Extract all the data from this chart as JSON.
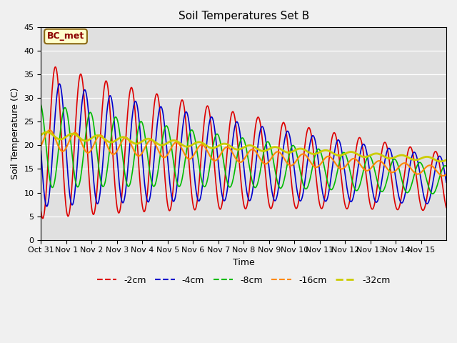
{
  "title": "Soil Temperatures Set B",
  "xlabel": "Time",
  "ylabel": "Soil Temperature (C)",
  "ylim": [
    0,
    45
  ],
  "annotation": "BC_met",
  "series_colors": {
    "-2cm": "#dd0000",
    "-4cm": "#0000cc",
    "-8cm": "#00bb00",
    "-16cm": "#ff8800",
    "-32cm": "#cccc00"
  },
  "xtick_positions": [
    0,
    1,
    2,
    3,
    4,
    5,
    6,
    7,
    8,
    9,
    10,
    11,
    12,
    13,
    14,
    15
  ],
  "xtick_labels": [
    "Oct 31",
    "Nov 1",
    "Nov 2",
    "Nov 3",
    "Nov 4",
    "Nov 5",
    "Nov 6",
    "Nov 7",
    "Nov 8",
    "Nov 9",
    "Nov 10",
    "Nov 11",
    "Nov 12",
    "Nov 13",
    "Nov 14",
    "Nov 15"
  ],
  "ytick_positions": [
    0,
    5,
    10,
    15,
    20,
    25,
    30,
    35,
    40,
    45
  ],
  "legend_entries": [
    "-2cm",
    "-4cm",
    "-8cm",
    "-16cm",
    "-32cm"
  ]
}
